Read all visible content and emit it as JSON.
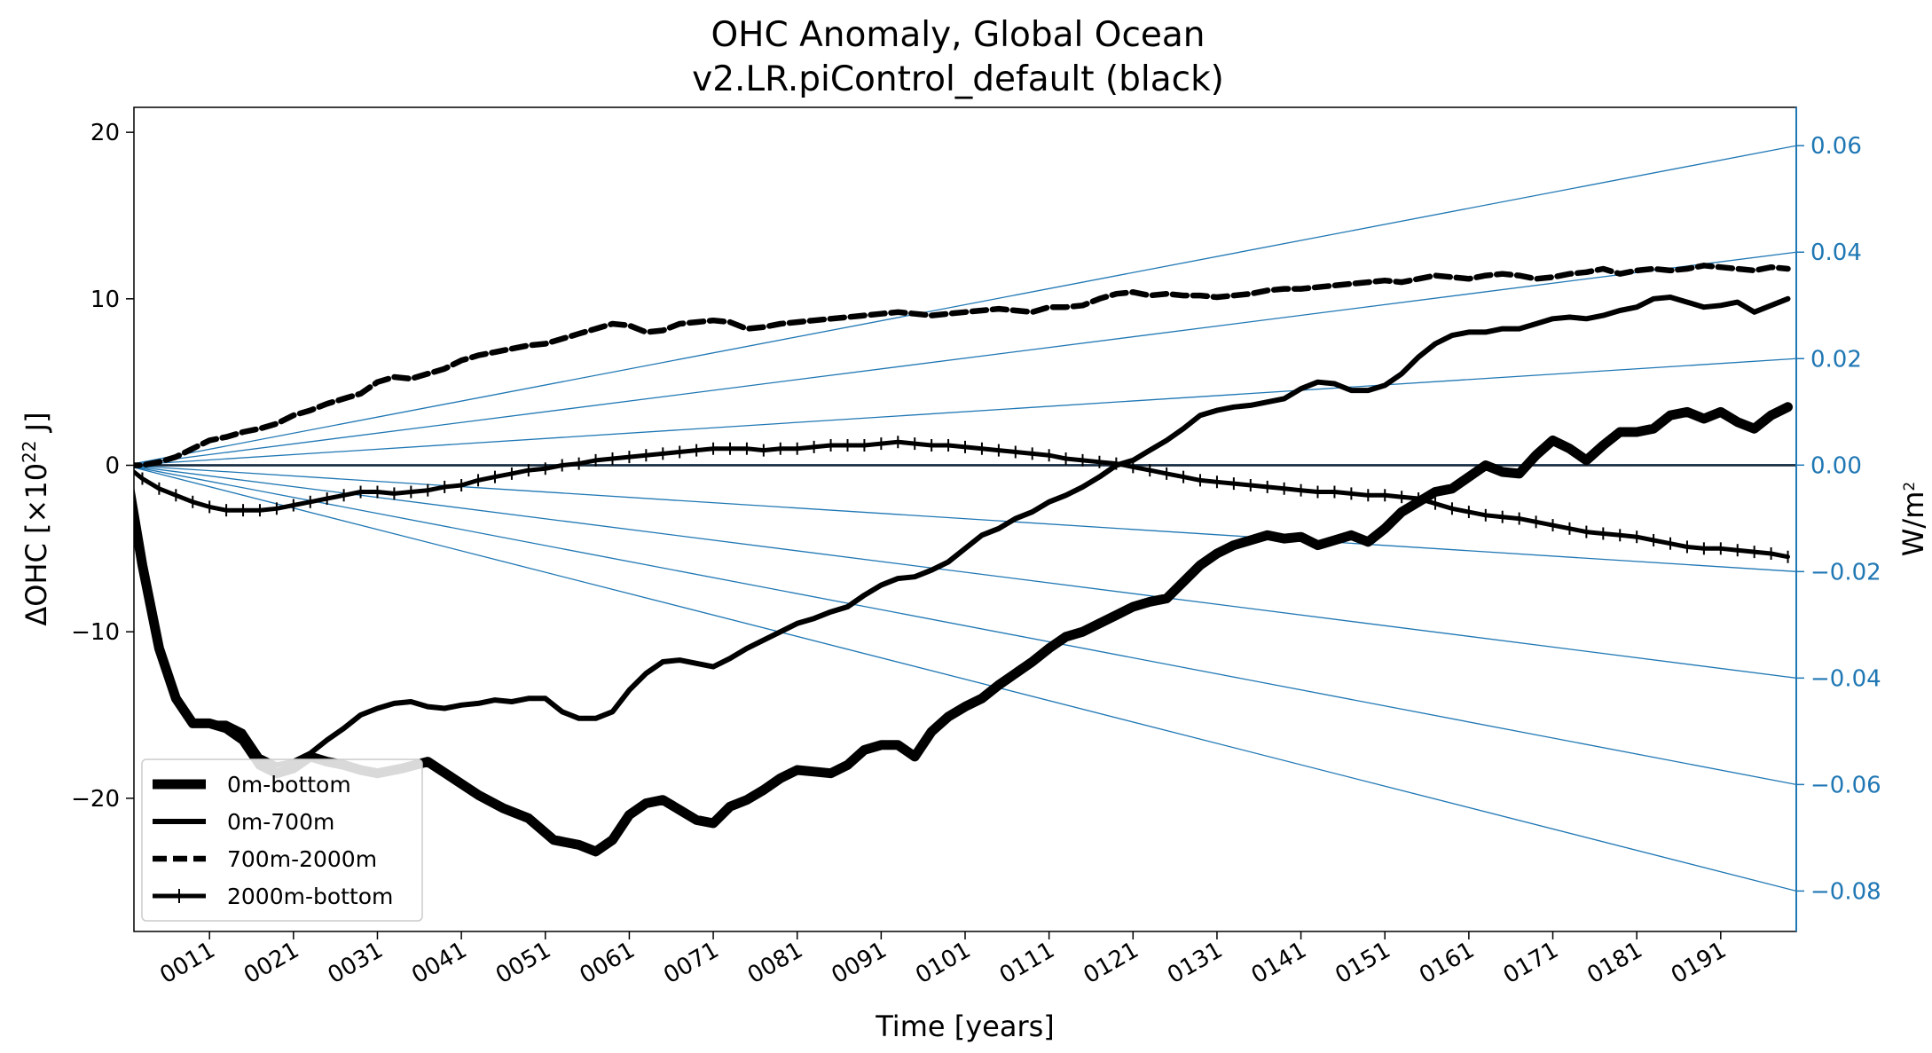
{
  "chart_data": {
    "type": "line",
    "title": "OHC Anomaly, Global Ocean",
    "subtitle": "v2.LR.piControl_default (black)",
    "xlabel": "Time [years]",
    "ylabel": "ΔOHC [×10",
    "ylabel_exp": "22",
    "ylabel_unit": " J]",
    "ylabel_right": "W/m",
    "ylabel_right_exp": "2",
    "xlim": [
      2,
      200
    ],
    "ylim": [
      -28,
      21.5
    ],
    "ylim_right": [
      -0.0876,
      0.0672
    ],
    "right_axis_color": "#1f77b4",
    "grid": false,
    "legend_position": "lower-left",
    "x_ticks": [
      {
        "value": 11,
        "label": "0011"
      },
      {
        "value": 21,
        "label": "0021"
      },
      {
        "value": 31,
        "label": "0031"
      },
      {
        "value": 41,
        "label": "0041"
      },
      {
        "value": 51,
        "label": "0051"
      },
      {
        "value": 61,
        "label": "0061"
      },
      {
        "value": 71,
        "label": "0071"
      },
      {
        "value": 81,
        "label": "0081"
      },
      {
        "value": 91,
        "label": "0091"
      },
      {
        "value": 101,
        "label": "0101"
      },
      {
        "value": 111,
        "label": "0111"
      },
      {
        "value": 121,
        "label": "0121"
      },
      {
        "value": 131,
        "label": "0131"
      },
      {
        "value": 141,
        "label": "0141"
      },
      {
        "value": 151,
        "label": "0151"
      },
      {
        "value": 161,
        "label": "0161"
      },
      {
        "value": 171,
        "label": "0171"
      },
      {
        "value": 181,
        "label": "0181"
      },
      {
        "value": 191,
        "label": "0191"
      }
    ],
    "y_ticks": [
      {
        "value": 20,
        "label": "20"
      },
      {
        "value": 10,
        "label": "10"
      },
      {
        "value": 0,
        "label": "0"
      },
      {
        "value": -10,
        "label": "−10"
      },
      {
        "value": -20,
        "label": "−20"
      }
    ],
    "y_ticks_right": [
      {
        "value": 0.06,
        "label": "0.06"
      },
      {
        "value": 0.04,
        "label": "0.04"
      },
      {
        "value": 0.02,
        "label": "0.02"
      },
      {
        "value": 0.0,
        "label": "0.00"
      },
      {
        "value": -0.02,
        "label": "−0.02"
      },
      {
        "value": -0.04,
        "label": "−0.04"
      },
      {
        "value": -0.06,
        "label": "−0.06"
      },
      {
        "value": -0.08,
        "label": "−0.08"
      }
    ],
    "reference_rates_w_m2": [
      0.06,
      0.04,
      0.02,
      0.0,
      -0.02,
      -0.04,
      -0.06,
      -0.08
    ],
    "series": [
      {
        "name": "0m-bottom",
        "style": "solid-thick",
        "x": [
          1,
          3,
          5,
          7,
          9,
          11,
          13,
          15,
          17,
          19,
          21,
          23,
          25,
          27,
          29,
          31,
          34,
          37,
          40,
          43,
          46,
          49,
          52,
          55,
          57,
          59,
          61,
          63,
          65,
          67,
          69,
          71,
          73,
          75,
          77,
          79,
          81,
          83,
          85,
          87,
          89,
          91,
          93,
          95,
          97,
          99,
          101,
          103,
          105,
          107,
          109,
          111,
          113,
          115,
          117,
          119,
          121,
          123,
          125,
          127,
          129,
          131,
          133,
          135,
          137,
          139,
          141,
          143,
          145,
          147,
          149,
          151,
          153,
          155,
          157,
          159,
          161,
          163,
          165,
          167,
          169,
          171,
          173,
          175,
          177,
          179,
          181,
          183,
          185,
          187,
          189,
          191,
          193,
          195,
          197,
          199
        ],
        "values": [
          0,
          -6,
          -11,
          -14,
          -15.5,
          -15.5,
          -15.8,
          -16.5,
          -18,
          -18.5,
          -18.2,
          -17.5,
          -17.8,
          -18,
          -18.3,
          -18.5,
          -18.2,
          -17.8,
          -18.8,
          -19.8,
          -20.6,
          -21.2,
          -22.5,
          -22.8,
          -23.2,
          -22.5,
          -21,
          -20.3,
          -20.1,
          -20.7,
          -21.3,
          -21.5,
          -20.5,
          -20.1,
          -19.5,
          -18.8,
          -18.3,
          -18.4,
          -18.5,
          -18,
          -17.1,
          -16.8,
          -16.8,
          -17.5,
          -16,
          -15.1,
          -14.5,
          -14,
          -13.2,
          -12.5,
          -11.8,
          -11,
          -10.3,
          -10,
          -9.5,
          -9,
          -8.5,
          -8.2,
          -8,
          -7,
          -6,
          -5.3,
          -4.8,
          -4.5,
          -4.2,
          -4.4,
          -4.3,
          -4.8,
          -4.5,
          -4.2,
          -4.6,
          -3.8,
          -2.8,
          -2.2,
          -1.6,
          -1.4,
          -0.7,
          0,
          -0.4,
          -0.5,
          0.6,
          1.5,
          1,
          0.3,
          1.2,
          2,
          2,
          2.2,
          3,
          3.2,
          2.8,
          3.2,
          2.6,
          2.2,
          3,
          3.5
        ]
      },
      {
        "name": "0m-700m",
        "style": "solid",
        "x": [
          1,
          3,
          5,
          7,
          9,
          11,
          13,
          15,
          17,
          19,
          21,
          23,
          25,
          27,
          29,
          31,
          33,
          35,
          37,
          39,
          41,
          43,
          45,
          47,
          49,
          51,
          53,
          55,
          57,
          59,
          61,
          63,
          65,
          67,
          69,
          71,
          73,
          75,
          77,
          79,
          81,
          83,
          85,
          87,
          89,
          91,
          93,
          95,
          97,
          99,
          101,
          103,
          105,
          107,
          109,
          111,
          113,
          115,
          117,
          119,
          121,
          123,
          125,
          127,
          129,
          131,
          133,
          135,
          137,
          139,
          141,
          143,
          145,
          147,
          149,
          151,
          153,
          155,
          157,
          159,
          161,
          163,
          165,
          167,
          169,
          171,
          173,
          175,
          177,
          179,
          181,
          183,
          185,
          187,
          189,
          191,
          193,
          195,
          197,
          199
        ],
        "values": [
          0,
          -6,
          -11,
          -14,
          -15.5,
          -15.5,
          -15.5,
          -16,
          -17.5,
          -18,
          -17.8,
          -17.3,
          -16.5,
          -15.8,
          -15,
          -14.6,
          -14.3,
          -14.2,
          -14.5,
          -14.6,
          -14.4,
          -14.3,
          -14.1,
          -14.2,
          -14,
          -14,
          -14.8,
          -15.2,
          -15.2,
          -14.8,
          -13.5,
          -12.5,
          -11.8,
          -11.7,
          -11.9,
          -12.1,
          -11.6,
          -11,
          -10.5,
          -10,
          -9.5,
          -9.2,
          -8.8,
          -8.5,
          -7.8,
          -7.2,
          -6.8,
          -6.7,
          -6.3,
          -5.8,
          -5,
          -4.2,
          -3.8,
          -3.2,
          -2.8,
          -2.2,
          -1.8,
          -1.3,
          -0.7,
          0,
          0.3,
          0.9,
          1.5,
          2.2,
          3,
          3.3,
          3.5,
          3.6,
          3.8,
          4,
          4.6,
          5,
          4.9,
          4.5,
          4.5,
          4.8,
          5.5,
          6.5,
          7.3,
          7.8,
          8,
          8,
          8.2,
          8.2,
          8.5,
          8.8,
          8.9,
          8.8,
          9,
          9.3,
          9.5,
          10,
          10.1,
          9.8,
          9.5,
          9.6,
          9.8,
          9.2,
          9.6,
          10
        ]
      },
      {
        "name": "700m-2000m",
        "style": "dashed",
        "x": [
          1,
          3,
          5,
          7,
          9,
          11,
          13,
          15,
          17,
          19,
          21,
          23,
          25,
          27,
          29,
          31,
          33,
          35,
          37,
          39,
          41,
          43,
          45,
          47,
          49,
          51,
          53,
          55,
          57,
          59,
          61,
          63,
          65,
          67,
          69,
          71,
          73,
          75,
          77,
          79,
          81,
          83,
          85,
          87,
          89,
          91,
          93,
          95,
          97,
          99,
          101,
          103,
          105,
          107,
          109,
          111,
          113,
          115,
          117,
          119,
          121,
          123,
          125,
          127,
          129,
          131,
          133,
          135,
          137,
          139,
          141,
          143,
          145,
          147,
          149,
          151,
          153,
          155,
          157,
          159,
          161,
          163,
          165,
          167,
          169,
          171,
          173,
          175,
          177,
          179,
          181,
          183,
          185,
          187,
          189,
          191,
          193,
          195,
          197,
          199
        ],
        "values": [
          0,
          0,
          0.2,
          0.5,
          1,
          1.5,
          1.7,
          2,
          2.2,
          2.5,
          3,
          3.3,
          3.7,
          4,
          4.3,
          5,
          5.3,
          5.2,
          5.5,
          5.8,
          6.3,
          6.6,
          6.8,
          7,
          7.2,
          7.3,
          7.6,
          7.9,
          8.2,
          8.5,
          8.4,
          8,
          8.1,
          8.5,
          8.6,
          8.7,
          8.6,
          8.2,
          8.3,
          8.5,
          8.6,
          8.7,
          8.8,
          8.9,
          9,
          9.1,
          9.2,
          9.1,
          9,
          9.1,
          9.2,
          9.3,
          9.4,
          9.3,
          9.2,
          9.5,
          9.5,
          9.6,
          10,
          10.3,
          10.4,
          10.2,
          10.3,
          10.2,
          10.2,
          10.1,
          10.2,
          10.3,
          10.5,
          10.6,
          10.6,
          10.7,
          10.8,
          10.9,
          11,
          11.1,
          11,
          11.2,
          11.4,
          11.3,
          11.2,
          11.4,
          11.5,
          11.4,
          11.2,
          11.3,
          11.5,
          11.6,
          11.8,
          11.5,
          11.7,
          11.8,
          11.7,
          11.8,
          12,
          11.9,
          11.8,
          11.7,
          11.9,
          11.8
        ]
      },
      {
        "name": "2000m-bottom",
        "style": "solid-plus",
        "x": [
          1,
          3,
          5,
          7,
          9,
          11,
          13,
          15,
          17,
          19,
          21,
          23,
          25,
          27,
          29,
          31,
          33,
          35,
          37,
          39,
          41,
          43,
          45,
          47,
          49,
          51,
          53,
          55,
          57,
          59,
          61,
          63,
          65,
          67,
          69,
          71,
          73,
          75,
          77,
          79,
          81,
          83,
          85,
          87,
          89,
          91,
          93,
          95,
          97,
          99,
          101,
          103,
          105,
          107,
          109,
          111,
          113,
          115,
          117,
          119,
          121,
          123,
          125,
          127,
          129,
          131,
          133,
          135,
          137,
          139,
          141,
          143,
          145,
          147,
          149,
          151,
          153,
          155,
          157,
          159,
          161,
          163,
          165,
          167,
          169,
          171,
          173,
          175,
          177,
          179,
          181,
          183,
          185,
          187,
          189,
          191,
          193,
          195,
          197,
          199
        ],
        "values": [
          0,
          -0.8,
          -1.4,
          -1.8,
          -2.2,
          -2.5,
          -2.7,
          -2.7,
          -2.7,
          -2.6,
          -2.4,
          -2.2,
          -2,
          -1.8,
          -1.6,
          -1.6,
          -1.7,
          -1.6,
          -1.5,
          -1.3,
          -1.2,
          -0.9,
          -0.7,
          -0.5,
          -0.3,
          -0.2,
          0,
          0.1,
          0.3,
          0.4,
          0.5,
          0.6,
          0.7,
          0.8,
          0.9,
          1,
          1,
          1,
          0.9,
          1,
          1,
          1.1,
          1.2,
          1.2,
          1.2,
          1.3,
          1.4,
          1.3,
          1.2,
          1.2,
          1.1,
          1,
          0.9,
          0.8,
          0.7,
          0.6,
          0.4,
          0.3,
          0.2,
          0.1,
          -0.1,
          -0.3,
          -0.5,
          -0.7,
          -0.9,
          -1,
          -1.1,
          -1.2,
          -1.3,
          -1.4,
          -1.5,
          -1.6,
          -1.6,
          -1.7,
          -1.8,
          -1.8,
          -1.9,
          -2,
          -2.3,
          -2.6,
          -2.8,
          -3,
          -3.1,
          -3.2,
          -3.4,
          -3.6,
          -3.8,
          -4,
          -4.1,
          -4.2,
          -4.3,
          -4.5,
          -4.7,
          -4.9,
          -5,
          -5,
          -5.1,
          -5.2,
          -5.3,
          -5.5
        ]
      }
    ]
  }
}
